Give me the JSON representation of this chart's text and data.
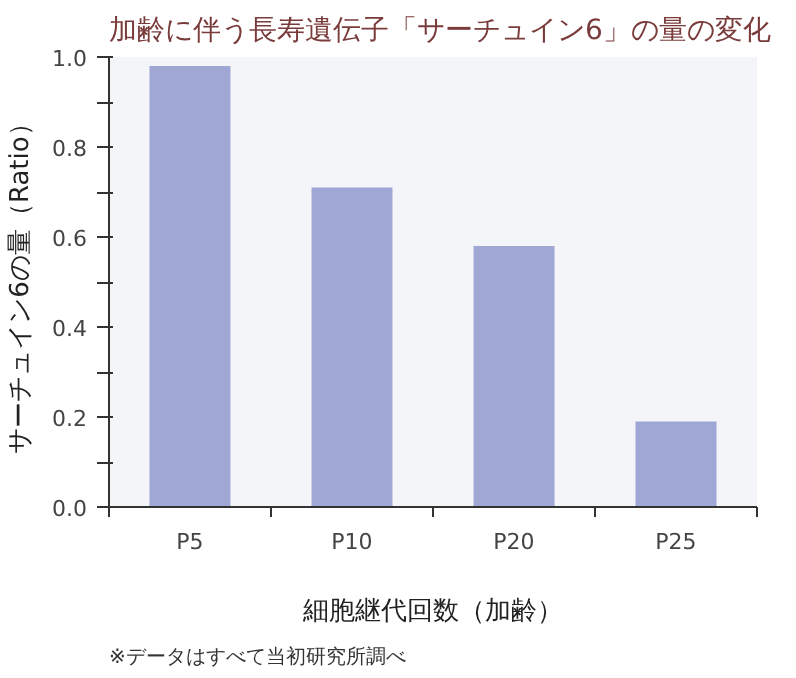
{
  "chart_data": {
    "type": "bar",
    "title": "加齢に伴う長寿遺伝子「サーチュイン6」の量の変化",
    "xlabel": "細胞継代回数（加齢）",
    "ylabel": "サーチュイン6の量（Ratio）",
    "categories": [
      "P5",
      "P10",
      "P20",
      "P25"
    ],
    "values": [
      0.98,
      0.71,
      0.58,
      0.19
    ],
    "color": "#9fa8d4",
    "ylim": [
      0,
      1.0
    ],
    "yticks": [
      {
        "value": 0,
        "label": "0.0"
      },
      {
        "value": 0.1,
        "label": null
      },
      {
        "value": 0.2,
        "label": "0.2"
      },
      {
        "value": 0.3,
        "label": null
      },
      {
        "value": 0.4,
        "label": "0.4"
      },
      {
        "value": 0.5,
        "label": null
      },
      {
        "value": 0.6,
        "label": "0.6"
      },
      {
        "value": 0.7,
        "label": null
      },
      {
        "value": 0.8,
        "label": "0.8"
      },
      {
        "value": 0.9,
        "label": null
      },
      {
        "value": 1.0,
        "label": "1.0"
      }
    ],
    "grid": false,
    "annotations": [
      "※データはすべて当初研究所調べ"
    ]
  }
}
